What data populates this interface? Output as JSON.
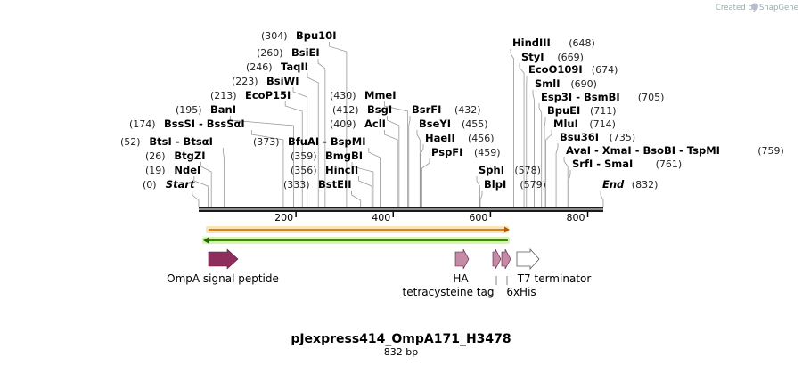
{
  "credit": {
    "text": "Created by",
    "brand": "SnapGene"
  },
  "plasmid": {
    "name": "pJexpress414_OmpA171_H3478",
    "length_label": "832 bp",
    "length_bp": 832
  },
  "ruler": {
    "ticks": [
      200,
      400,
      600,
      800
    ],
    "tick_labels": [
      "200",
      "400",
      "600",
      "800"
    ]
  },
  "colors": {
    "omp_signal": "#8e2e5c",
    "ha_tag": "#c48aa6",
    "t7_term": "#ffffff",
    "orange_band": "#f5a623",
    "green_band": "#7ed321",
    "band_outline": "#f5d99a",
    "backbone": "#1a1a1a"
  },
  "sites_left": [
    {
      "pos_label": "(0)",
      "name": "Start",
      "italic": true,
      "bp": 0
    },
    {
      "pos_label": "(19)",
      "name": "NdeI",
      "bp": 19
    },
    {
      "pos_label": "(26)",
      "name": "BtgZI",
      "bp": 26
    },
    {
      "pos_label": "(52)",
      "name": "BtsI - BtsαI",
      "bp": 52
    },
    {
      "pos_label": "(174)",
      "name": "BssSI - BssSαI",
      "bp": 174
    },
    {
      "pos_label": "(195)",
      "name": "BanI",
      "bp": 195
    },
    {
      "pos_label": "(213)",
      "name": "EcoP15I",
      "bp": 213
    },
    {
      "pos_label": "(223)",
      "name": "BsiWI",
      "bp": 223
    },
    {
      "pos_label": "(246)",
      "name": "TaqII",
      "bp": 246
    },
    {
      "pos_label": "(260)",
      "name": "BsiEI",
      "bp": 260
    },
    {
      "pos_label": "(304)",
      "name": "Bpu10I",
      "bp": 304
    }
  ],
  "sites_mid": [
    {
      "pos_label": "(333)",
      "name": "BstEII",
      "bp": 333
    },
    {
      "pos_label": "(356)",
      "name": "HincII",
      "bp": 356
    },
    {
      "pos_label": "(359)",
      "name": "BmgBI",
      "bp": 359
    },
    {
      "pos_label": "(373)",
      "name": "BfuAI - BspMI",
      "bp": 373
    },
    {
      "pos_label": "(409)",
      "name": "AclI",
      "bp": 409
    },
    {
      "pos_label": "(412)",
      "name": "BsgI",
      "bp": 412
    },
    {
      "pos_label": "(430)",
      "name": "MmeI",
      "bp": 430
    }
  ],
  "sites_mid2": [
    {
      "name": "BsrFI",
      "pos_label": "(432)",
      "bp": 432
    },
    {
      "name": "BseYI",
      "pos_label": "(455)",
      "bp": 455
    },
    {
      "name": "HaeII",
      "pos_label": "(456)",
      "bp": 456
    },
    {
      "name": "PspFI",
      "pos_label": "(459)",
      "bp": 459
    }
  ],
  "sites_right_low": [
    {
      "name": "SphI",
      "pos_label": "(578)",
      "bp": 578
    },
    {
      "name": "BlpI",
      "pos_label": "(579)",
      "bp": 579
    }
  ],
  "sites_right": [
    {
      "name": "HindIII",
      "pos_label": "(648)",
      "bp": 648
    },
    {
      "name": "StyI",
      "pos_label": "(669)",
      "bp": 669
    },
    {
      "name": "EcoO109I",
      "pos_label": "(674)",
      "bp": 674
    },
    {
      "name": "SmlI",
      "pos_label": "(690)",
      "bp": 690
    },
    {
      "name": "Esp3I - BsmBI",
      "pos_label": "(705)",
      "bp": 705
    },
    {
      "name": "BpuEI",
      "pos_label": "(711)",
      "bp": 711
    },
    {
      "name": "MluI",
      "pos_label": "(714)",
      "bp": 714
    },
    {
      "name": "Bsu36I",
      "pos_label": "(735)",
      "bp": 735
    },
    {
      "name": "AvaI - XmaI - BsoBI - TspMI",
      "pos_label": "(759)",
      "bp": 759
    },
    {
      "name": "SrfI - SmaI",
      "pos_label": "(761)",
      "bp": 761
    },
    {
      "name": "End",
      "pos_label": "(832)",
      "italic": true,
      "bp": 832
    }
  ],
  "features": [
    {
      "id": "omp",
      "label": "OmpA signal peptide",
      "start": 10,
      "end": 70,
      "color": "#8e2e5c"
    },
    {
      "id": "ha",
      "label": "HA",
      "start": 542,
      "end": 570,
      "color": "#c48aa6"
    },
    {
      "id": "tc",
      "label": "tetracysteine tag",
      "start": 600,
      "end": 617,
      "color": "#c48aa6"
    },
    {
      "id": "his",
      "label": "6xHis",
      "start": 618,
      "end": 635,
      "color": "#c48aa6"
    },
    {
      "id": "t7",
      "label": "T7 terminator",
      "start": 655,
      "end": 700,
      "color": "#ffffff"
    }
  ]
}
